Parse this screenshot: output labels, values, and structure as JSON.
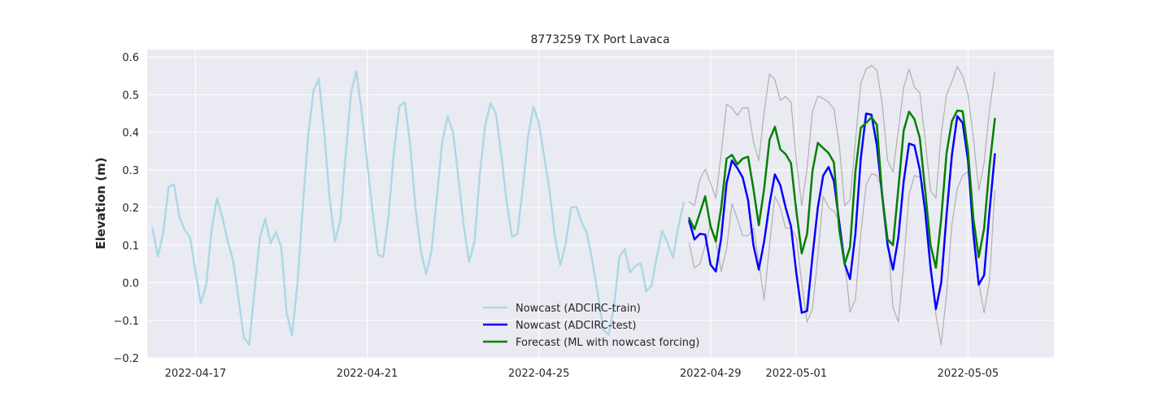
{
  "chart_data": {
    "type": "line",
    "title": "8773259 TX Port Lavaca",
    "xlabel": "",
    "ylabel": "Elevation (m)",
    "x_axis_type": "date",
    "xlim": [
      "2022-04-15T21:00",
      "2022-05-07T00:00"
    ],
    "ylim": [
      -0.2,
      0.62
    ],
    "xticks": [
      "2022-04-17",
      "2022-04-21",
      "2022-04-25",
      "2022-04-29",
      "2022-05-01",
      "2022-05-05"
    ],
    "yticks": [
      -0.2,
      -0.1,
      0.0,
      0.1,
      0.2,
      0.3,
      0.4,
      0.5,
      0.6
    ],
    "ytick_labels": [
      "−0.2",
      "−0.1",
      "0.0",
      "0.1",
      "0.2",
      "0.3",
      "0.4",
      "0.5",
      "0.6"
    ],
    "grid": true,
    "legend_position": "lower-center",
    "start": "2022-04-16T00:00",
    "step_hours": 3,
    "series": [
      {
        "name": "Nowcast (ADCIRC-train)",
        "color": "#add8e6",
        "line_width": 2.5,
        "start": "2022-04-16T00:00",
        "values": [
          0.145,
          0.07,
          0.135,
          0.255,
          0.262,
          0.175,
          0.14,
          0.12,
          0.03,
          -0.055,
          -0.005,
          0.14,
          0.225,
          0.175,
          0.11,
          0.06,
          -0.04,
          -0.145,
          -0.165,
          -0.02,
          0.12,
          0.17,
          0.105,
          0.135,
          0.095,
          -0.08,
          -0.14,
          -0.005,
          0.2,
          0.39,
          0.51,
          0.543,
          0.4,
          0.225,
          0.11,
          0.165,
          0.34,
          0.505,
          0.563,
          0.45,
          0.32,
          0.19,
          0.075,
          0.068,
          0.18,
          0.35,
          0.47,
          0.48,
          0.37,
          0.2,
          0.085,
          0.022,
          0.085,
          0.23,
          0.375,
          0.443,
          0.4,
          0.28,
          0.15,
          0.055,
          0.11,
          0.29,
          0.42,
          0.477,
          0.45,
          0.34,
          0.215,
          0.122,
          0.13,
          0.25,
          0.39,
          0.468,
          0.425,
          0.335,
          0.245,
          0.122,
          0.047,
          0.103,
          0.2,
          0.202,
          0.16,
          0.13,
          0.055,
          -0.03,
          -0.125,
          -0.138,
          -0.065,
          0.068,
          0.09,
          0.027,
          0.045,
          0.052,
          -0.022,
          -0.008,
          0.07,
          0.138,
          0.105,
          0.066,
          0.15,
          0.213
        ]
      },
      {
        "name": "",
        "color": "#b0b0b0",
        "line_width": 1.2,
        "start": "2022-04-28T12:00",
        "values": [
          0.105,
          0.04,
          0.05,
          0.1,
          0.155,
          0.11,
          0.03,
          0.09,
          0.21,
          0.17,
          0.125,
          0.125,
          0.145,
          0.055,
          -0.045,
          0.1,
          0.23,
          0.2,
          0.145,
          0.145,
          0.12,
          0.0,
          -0.105,
          -0.07,
          0.07,
          0.23,
          0.2,
          0.19,
          0.165,
          0.06,
          -0.078,
          -0.045,
          0.13,
          0.26,
          0.29,
          0.285,
          0.25,
          0.12,
          -0.065,
          -0.105,
          0.05,
          0.235,
          0.285,
          0.28,
          0.25,
          0.06,
          -0.085,
          -0.165,
          -0.03,
          0.155,
          0.25,
          0.285,
          0.295,
          0.17,
          0.0,
          -0.08,
          0.005,
          0.245
        ]
      },
      {
        "name": "",
        "color": "#b0b0b0",
        "line_width": 1.2,
        "start": "2022-04-28T12:00",
        "values": [
          0.215,
          0.205,
          0.275,
          0.302,
          0.265,
          0.225,
          0.345,
          0.475,
          0.465,
          0.445,
          0.465,
          0.465,
          0.375,
          0.325,
          0.455,
          0.555,
          0.54,
          0.485,
          0.495,
          0.48,
          0.325,
          0.205,
          0.305,
          0.455,
          0.497,
          0.49,
          0.48,
          0.462,
          0.365,
          0.205,
          0.22,
          0.375,
          0.53,
          0.568,
          0.578,
          0.565,
          0.475,
          0.325,
          0.295,
          0.405,
          0.52,
          0.568,
          0.52,
          0.505,
          0.38,
          0.245,
          0.225,
          0.395,
          0.5,
          0.535,
          0.575,
          0.55,
          0.5,
          0.385,
          0.245,
          0.32,
          0.46,
          0.561
        ]
      },
      {
        "name": "Nowcast (ADCIRC-test)",
        "color": "#0000ff",
        "line_width": 2.5,
        "start": "2022-04-28T12:00",
        "values": [
          0.165,
          0.115,
          0.13,
          0.128,
          0.048,
          0.03,
          0.12,
          0.265,
          0.325,
          0.305,
          0.28,
          0.22,
          0.1,
          0.035,
          0.11,
          0.21,
          0.288,
          0.26,
          0.2,
          0.15,
          0.025,
          -0.08,
          -0.075,
          0.07,
          0.2,
          0.285,
          0.308,
          0.27,
          0.16,
          0.05,
          0.01,
          0.13,
          0.33,
          0.45,
          0.447,
          0.365,
          0.23,
          0.1,
          0.035,
          0.12,
          0.27,
          0.37,
          0.365,
          0.3,
          0.19,
          0.04,
          -0.07,
          0.0,
          0.18,
          0.34,
          0.443,
          0.425,
          0.325,
          0.13,
          -0.005,
          0.02,
          0.19,
          0.342
        ]
      },
      {
        "name": "Forecast (ML with nowcast forcing)",
        "color": "#008000",
        "line_width": 2.5,
        "start": "2022-04-28T12:00",
        "values": [
          0.172,
          0.142,
          0.185,
          0.23,
          0.15,
          0.11,
          0.2,
          0.33,
          0.34,
          0.315,
          0.33,
          0.335,
          0.25,
          0.153,
          0.25,
          0.38,
          0.415,
          0.355,
          0.342,
          0.318,
          0.19,
          0.078,
          0.13,
          0.297,
          0.372,
          0.358,
          0.345,
          0.32,
          0.14,
          0.05,
          0.095,
          0.295,
          0.412,
          0.425,
          0.44,
          0.42,
          0.23,
          0.115,
          0.1,
          0.25,
          0.405,
          0.455,
          0.435,
          0.385,
          0.245,
          0.1,
          0.04,
          0.17,
          0.345,
          0.43,
          0.458,
          0.456,
          0.35,
          0.17,
          0.068,
          0.145,
          0.31,
          0.436
        ]
      }
    ]
  }
}
